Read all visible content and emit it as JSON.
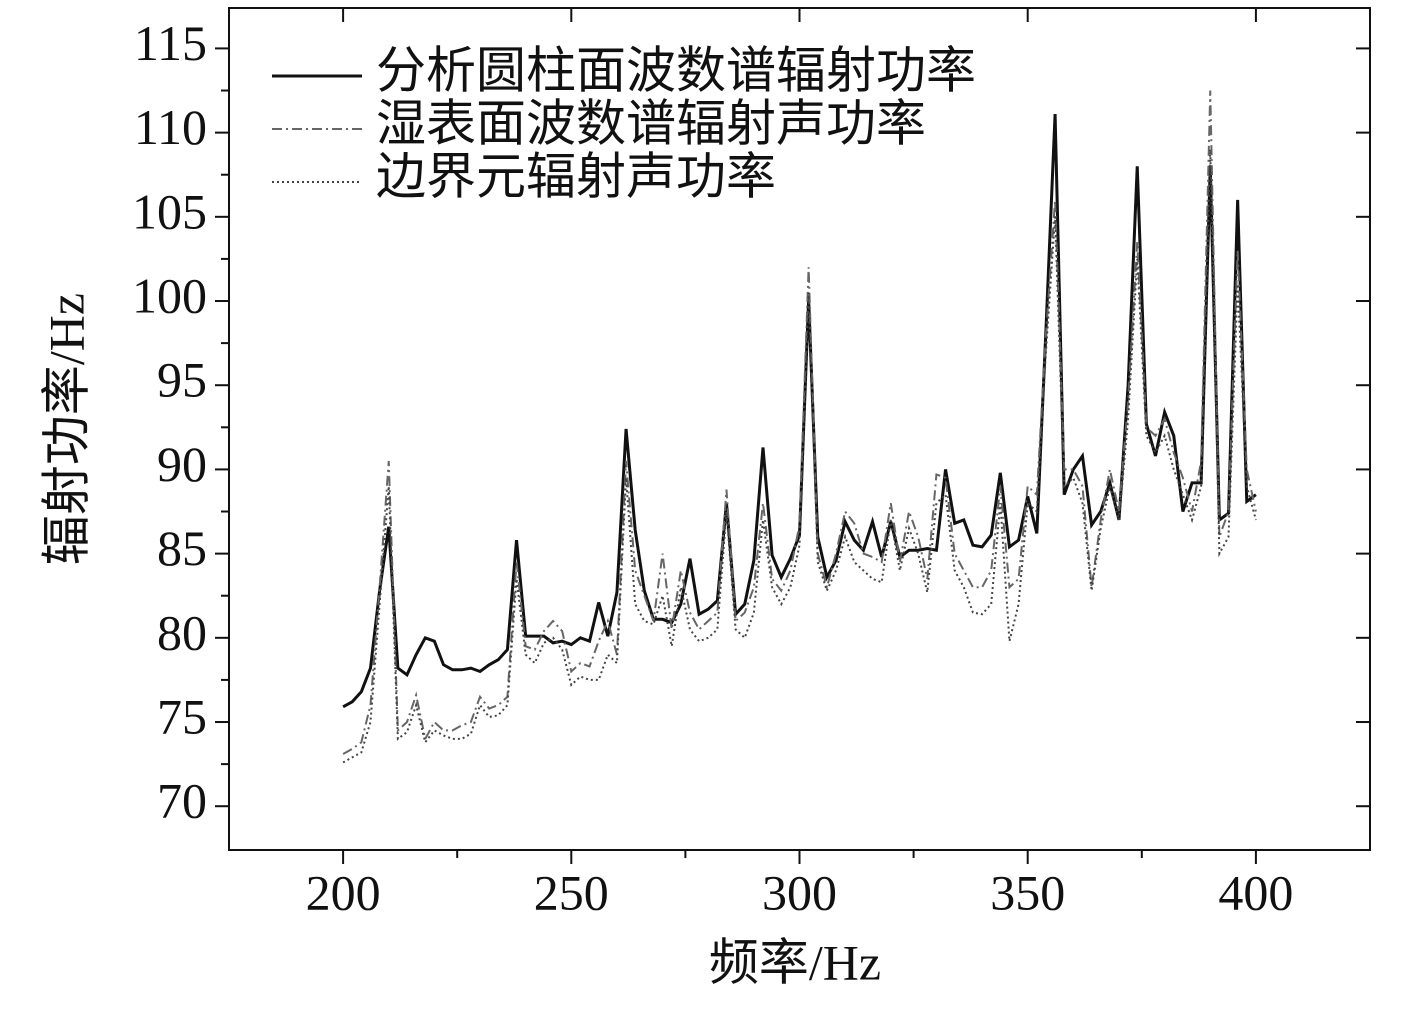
{
  "chart_data": {
    "type": "line",
    "xlabel": "频率/Hz",
    "ylabel": "辐射功率/Hz",
    "x": [
      200,
      202,
      204,
      206,
      208,
      210,
      212,
      214,
      216,
      218,
      220,
      222,
      224,
      226,
      228,
      230,
      232,
      234,
      236,
      238,
      240,
      242,
      244,
      246,
      248,
      250,
      252,
      254,
      256,
      258,
      260,
      262,
      264,
      266,
      268,
      270,
      272,
      274,
      276,
      278,
      280,
      282,
      284,
      286,
      288,
      290,
      292,
      294,
      296,
      298,
      300,
      302,
      304,
      306,
      308,
      310,
      312,
      314,
      316,
      318,
      320,
      322,
      324,
      326,
      328,
      330,
      332,
      334,
      336,
      338,
      340,
      342,
      344,
      346,
      348,
      350,
      352,
      354,
      356,
      358,
      360,
      362,
      364,
      366,
      368,
      370,
      372,
      374,
      376,
      378,
      380,
      382,
      384,
      386,
      388,
      390,
      392,
      394,
      396,
      398,
      400
    ],
    "series": [
      {
        "name": "分析圆柱面波数谱辐射功率",
        "color": "#111111",
        "style": "solid",
        "values": [
          75.9,
          76.2,
          76.8,
          78.2,
          82.8,
          86.6,
          78.2,
          77.8,
          79,
          80,
          79.8,
          78.4,
          78.1,
          78.1,
          78.2,
          78,
          78.4,
          78.7,
          79.3,
          85.8,
          80.1,
          80.1,
          80.1,
          79.7,
          79.8,
          79.6,
          80,
          79.8,
          82.1,
          80.1,
          82.7,
          92.4,
          86.4,
          82.8,
          81.1,
          81.1,
          80.9,
          82,
          84.7,
          81.4,
          81.7,
          82.2,
          88,
          81.4,
          82,
          84.6,
          91.3,
          84.9,
          83.6,
          84.7,
          86.1,
          100.1,
          86,
          83.6,
          84.6,
          86.9,
          85.8,
          85.2,
          86.9,
          84.8,
          86.9,
          84.8,
          85.2,
          85.2,
          85.3,
          85.2,
          90,
          86.8,
          87,
          85.5,
          85.4,
          86.1,
          89.8,
          85.4,
          85.8,
          88.4,
          86.2,
          98.3,
          111.1,
          88.5,
          90,
          90.8,
          86.7,
          87.5,
          89.2,
          87,
          95,
          108,
          92.7,
          90.8,
          93.4,
          92,
          87.5,
          89.2,
          89.2,
          108,
          87,
          87.4,
          106,
          88.1,
          88.5
        ]
      },
      {
        "name": "湿表面波数谱辐射声功率",
        "color": "#666666",
        "style": "dashdot",
        "values": [
          73.1,
          73.4,
          73.8,
          76,
          83,
          90.5,
          74.5,
          75,
          76.6,
          74,
          75,
          74.5,
          74.5,
          74.8,
          75,
          76.5,
          75.8,
          76,
          76.5,
          84.5,
          79.5,
          79.3,
          80.4,
          81,
          80.4,
          78,
          78.5,
          78.3,
          79.8,
          81,
          79,
          90.5,
          84,
          82.5,
          81,
          85,
          80.5,
          84,
          81.5,
          80.5,
          81,
          81.5,
          88.8,
          81,
          81.5,
          83,
          88,
          83.5,
          82.8,
          84,
          86.7,
          102,
          85,
          83,
          85,
          87.5,
          86.8,
          85,
          84.8,
          84.5,
          88,
          84.5,
          87.5,
          86,
          83.5,
          89.7,
          89.5,
          85,
          84,
          83,
          83,
          84,
          89,
          83,
          83.5,
          89,
          88.5,
          98,
          106,
          90,
          90,
          89,
          83,
          87,
          90,
          87.5,
          94,
          103.5,
          92.5,
          92,
          93,
          91,
          89.5,
          87.5,
          90.5,
          112.5,
          86,
          87.5,
          103,
          90,
          87.5
        ]
      },
      {
        "name": "边界元辐射声功率",
        "color": "#444444",
        "style": "dotted",
        "values": [
          72.6,
          72.9,
          73.2,
          75,
          82,
          89,
          74,
          74.4,
          76,
          73.8,
          74.5,
          74.2,
          74,
          74,
          74.3,
          76,
          75.3,
          75.4,
          76,
          83.5,
          79,
          78.5,
          79.7,
          80,
          79.3,
          77.2,
          77.7,
          77.5,
          77.5,
          79,
          78.5,
          89.5,
          82,
          81,
          80.8,
          82.5,
          79.5,
          83,
          80.5,
          79.8,
          80,
          80.5,
          87.5,
          80.5,
          80,
          81.5,
          87,
          83,
          82,
          83,
          85.5,
          100.5,
          84.5,
          82.8,
          84,
          86,
          84.5,
          84,
          83.5,
          83.3,
          87,
          84,
          86.5,
          85,
          82.7,
          88,
          88.5,
          84,
          83,
          81.5,
          81.4,
          82,
          88,
          79.8,
          82,
          88,
          87.5,
          97,
          105,
          89,
          89.5,
          88,
          82.8,
          86.5,
          89,
          87,
          93,
          102.5,
          92,
          91,
          92,
          90,
          88.5,
          87,
          89,
          109,
          85,
          86,
          101,
          89,
          87
        ]
      }
    ],
    "xlim": [
      175,
      425
    ],
    "xticks": [
      200,
      250,
      300,
      350,
      400
    ],
    "ylim": [
      67.4,
      117.4
    ],
    "yticks": [
      70,
      75,
      80,
      85,
      90,
      95,
      100,
      105,
      110,
      115
    ],
    "legend": "upper left",
    "grid": false
  }
}
